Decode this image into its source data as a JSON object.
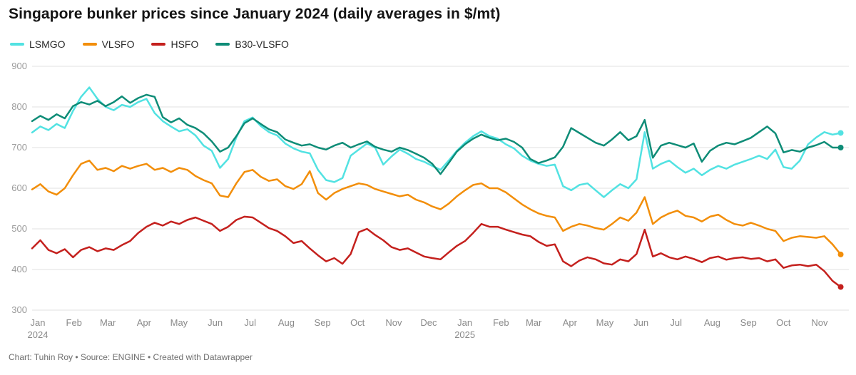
{
  "header": {
    "title": "Singapore bunker prices since January 2024 (daily averages in $/mt)"
  },
  "footer": {
    "credit": "Chart: Tuhin Roy • Source: ENGINE • Created with Datawrapper"
  },
  "chart_data": {
    "type": "line",
    "title": "Singapore bunker prices since January 2024 (daily averages in $/mt)",
    "ylabel": "$/mt",
    "ylim": [
      300,
      900
    ],
    "yticks": [
      300,
      400,
      500,
      600,
      700,
      800,
      900
    ],
    "grid": "horizontal",
    "legend_position": "top-left",
    "x_unit": "days since 2024-01-01, one sample per 7 days",
    "sample_interval_days": 7,
    "x_span_days": 700,
    "months": [
      {
        "label": "Jan",
        "sub": "2024",
        "day": 0
      },
      {
        "label": "Feb",
        "day": 31
      },
      {
        "label": "Mar",
        "day": 60
      },
      {
        "label": "Apr",
        "day": 91
      },
      {
        "label": "May",
        "day": 121
      },
      {
        "label": "Jun",
        "day": 152
      },
      {
        "label": "Jul",
        "day": 182
      },
      {
        "label": "Aug",
        "day": 213
      },
      {
        "label": "Sep",
        "day": 244
      },
      {
        "label": "Oct",
        "day": 274
      },
      {
        "label": "Nov",
        "day": 305
      },
      {
        "label": "Dec",
        "day": 335
      },
      {
        "label": "Jan",
        "sub": "2025",
        "day": 366
      },
      {
        "label": "Feb",
        "day": 397
      },
      {
        "label": "Mar",
        "day": 425
      },
      {
        "label": "Apr",
        "day": 456
      },
      {
        "label": "May",
        "day": 486
      },
      {
        "label": "Jun",
        "day": 517
      },
      {
        "label": "Jul",
        "day": 547
      },
      {
        "label": "Aug",
        "day": 578
      },
      {
        "label": "Sep",
        "day": 609
      },
      {
        "label": "Oct",
        "day": 639
      },
      {
        "label": "Nov",
        "day": 670
      }
    ],
    "series": [
      {
        "name": "LSMGO",
        "color": "#52e2e2",
        "values": [
          737,
          752,
          743,
          758,
          748,
          790,
          825,
          848,
          820,
          800,
          792,
          805,
          800,
          812,
          820,
          785,
          765,
          752,
          740,
          745,
          730,
          705,
          692,
          650,
          672,
          725,
          765,
          774,
          753,
          738,
          730,
          710,
          698,
          690,
          686,
          645,
          620,
          615,
          625,
          680,
          695,
          710,
          700,
          658,
          678,
          695,
          685,
          672,
          665,
          655,
          645,
          668,
          692,
          712,
          728,
          740,
          728,
          722,
          708,
          698,
          680,
          668,
          660,
          655,
          658,
          605,
          595,
          608,
          612,
          595,
          578,
          595,
          610,
          600,
          622,
          738,
          648,
          660,
          668,
          652,
          638,
          648,
          632,
          645,
          655,
          648,
          658,
          665,
          672,
          680,
          672,
          695,
          652,
          648,
          668,
          708,
          725,
          738,
          732,
          736
        ]
      },
      {
        "name": "VLSFO",
        "color": "#f28e0a",
        "values": [
          597,
          610,
          592,
          584,
          600,
          632,
          660,
          668,
          645,
          650,
          642,
          655,
          648,
          655,
          660,
          645,
          650,
          640,
          650,
          645,
          630,
          620,
          612,
          582,
          578,
          612,
          640,
          645,
          628,
          618,
          622,
          605,
          598,
          610,
          642,
          588,
          572,
          588,
          598,
          605,
          612,
          608,
          598,
          592,
          586,
          580,
          584,
          572,
          565,
          555,
          548,
          562,
          580,
          595,
          608,
          612,
          600,
          600,
          590,
          575,
          560,
          548,
          538,
          532,
          528,
          495,
          505,
          512,
          508,
          502,
          498,
          512,
          528,
          520,
          540,
          578,
          512,
          528,
          538,
          545,
          532,
          528,
          518,
          530,
          535,
          522,
          512,
          508,
          515,
          508,
          500,
          495,
          470,
          478,
          482,
          480,
          478,
          482,
          462,
          437
        ]
      },
      {
        "name": "HSFO",
        "color": "#c4201d",
        "values": [
          452,
          472,
          448,
          440,
          450,
          430,
          448,
          455,
          445,
          452,
          448,
          460,
          470,
          490,
          505,
          515,
          508,
          518,
          512,
          522,
          528,
          520,
          512,
          495,
          505,
          522,
          530,
          528,
          515,
          502,
          495,
          482,
          465,
          470,
          452,
          435,
          420,
          428,
          414,
          438,
          492,
          500,
          485,
          472,
          455,
          448,
          452,
          442,
          432,
          428,
          425,
          442,
          458,
          470,
          490,
          512,
          505,
          505,
          498,
          492,
          486,
          482,
          468,
          458,
          462,
          420,
          408,
          422,
          430,
          425,
          415,
          412,
          425,
          420,
          438,
          498,
          432,
          440,
          430,
          425,
          432,
          426,
          418,
          428,
          432,
          424,
          428,
          430,
          426,
          428,
          420,
          425,
          404,
          410,
          412,
          408,
          412,
          396,
          372,
          357
        ]
      },
      {
        "name": "B30-VLSFO",
        "color": "#0e8c77",
        "values": [
          765,
          778,
          768,
          782,
          772,
          802,
          812,
          806,
          815,
          802,
          812,
          826,
          810,
          822,
          830,
          825,
          775,
          762,
          772,
          756,
          748,
          735,
          715,
          690,
          700,
          728,
          760,
          772,
          758,
          745,
          738,
          720,
          712,
          705,
          708,
          700,
          695,
          705,
          712,
          700,
          708,
          715,
          702,
          695,
          690,
          700,
          694,
          685,
          675,
          660,
          635,
          662,
          690,
          708,
          722,
          732,
          724,
          718,
          722,
          714,
          700,
          672,
          662,
          668,
          676,
          702,
          748,
          736,
          724,
          712,
          705,
          720,
          738,
          718,
          728,
          768,
          675,
          705,
          712,
          706,
          700,
          710,
          665,
          692,
          705,
          712,
          708,
          716,
          724,
          738,
          752,
          735,
          688,
          694,
          690,
          700,
          706,
          714,
          700,
          700
        ]
      }
    ]
  }
}
